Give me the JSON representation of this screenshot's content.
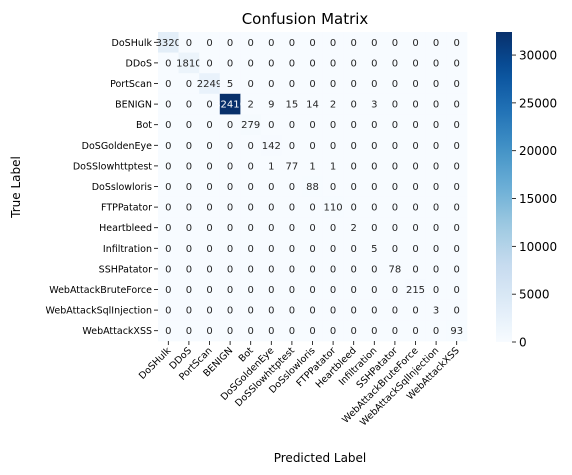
{
  "chart_data": {
    "type": "heatmap",
    "title": "Confusion Matrix",
    "xlabel": "Predicted Label",
    "ylabel": "True Label",
    "labels": [
      "DoSHulk",
      "DDoS",
      "PortScan",
      "BENIGN",
      "Bot",
      "DoSGoldenEye",
      "DoSSlowhttptest",
      "DoSslowloris",
      "FTPPatator",
      "Heartbleed",
      "Infiltration",
      "SSHPatator",
      "WebAttackBruteForce",
      "WebAttackSqlInjection",
      "WebAttackXSS"
    ],
    "matrix": [
      [
        3320,
        0,
        0,
        0,
        0,
        0,
        0,
        0,
        0,
        0,
        0,
        0,
        0,
        0,
        0
      ],
      [
        0,
        1810,
        0,
        0,
        0,
        0,
        0,
        0,
        0,
        0,
        0,
        0,
        0,
        0,
        0
      ],
      [
        0,
        0,
        2249,
        5,
        0,
        0,
        0,
        0,
        0,
        0,
        0,
        0,
        0,
        0,
        0
      ],
      [
        0,
        0,
        0,
        32410,
        2,
        9,
        15,
        14,
        2,
        0,
        3,
        0,
        0,
        0,
        0
      ],
      [
        0,
        0,
        0,
        0,
        279,
        0,
        0,
        0,
        0,
        0,
        0,
        0,
        0,
        0,
        0
      ],
      [
        0,
        0,
        0,
        0,
        0,
        142,
        0,
        0,
        0,
        0,
        0,
        0,
        0,
        0,
        0
      ],
      [
        0,
        0,
        0,
        0,
        0,
        1,
        77,
        1,
        1,
        0,
        0,
        0,
        0,
        0,
        0
      ],
      [
        0,
        0,
        0,
        0,
        0,
        0,
        0,
        88,
        0,
        0,
        0,
        0,
        0,
        0,
        0
      ],
      [
        0,
        0,
        0,
        0,
        0,
        0,
        0,
        0,
        110,
        0,
        0,
        0,
        0,
        0,
        0
      ],
      [
        0,
        0,
        0,
        0,
        0,
        0,
        0,
        0,
        0,
        2,
        0,
        0,
        0,
        0,
        0
      ],
      [
        0,
        0,
        0,
        0,
        0,
        0,
        0,
        0,
        0,
        0,
        5,
        0,
        0,
        0,
        0
      ],
      [
        0,
        0,
        0,
        0,
        0,
        0,
        0,
        0,
        0,
        0,
        0,
        78,
        0,
        0,
        0
      ],
      [
        0,
        0,
        0,
        0,
        0,
        0,
        0,
        0,
        0,
        0,
        0,
        0,
        215,
        0,
        0
      ],
      [
        0,
        0,
        0,
        0,
        0,
        0,
        0,
        0,
        0,
        0,
        0,
        0,
        0,
        3,
        0
      ],
      [
        0,
        0,
        0,
        0,
        0,
        0,
        0,
        0,
        0,
        0,
        0,
        0,
        0,
        0,
        93
      ]
    ],
    "colorbar": {
      "ticks": [
        0,
        5000,
        10000,
        15000,
        20000,
        25000,
        30000
      ],
      "range": [
        0,
        32410
      ]
    },
    "colors": {
      "low": "#f7fbff",
      "high": "#08306b",
      "text_dark": "#262626",
      "text_light": "#ffffff"
    }
  }
}
